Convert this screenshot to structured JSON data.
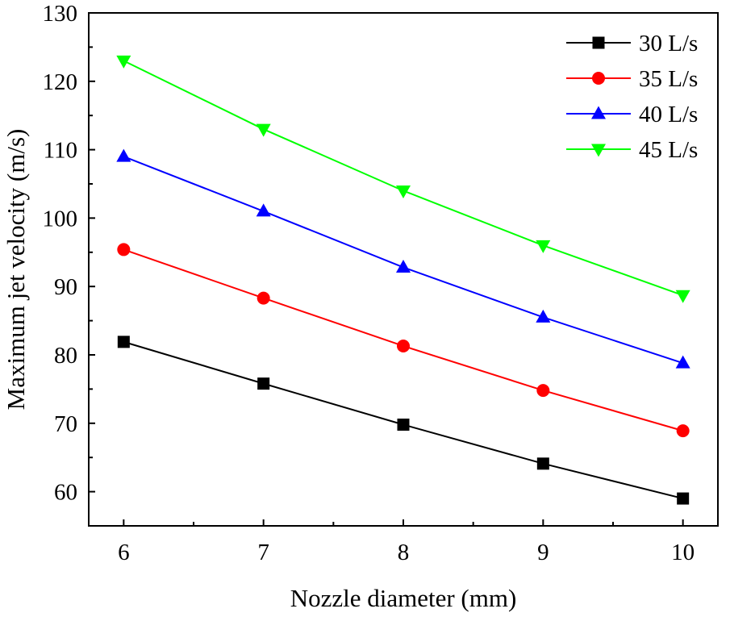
{
  "chart_data": {
    "type": "line",
    "title": "",
    "xlabel": "Nozzle diameter (mm)",
    "ylabel": "Maximum jet velocity (m/s)",
    "x": [
      6,
      7,
      8,
      9,
      10
    ],
    "xticks": [
      "6",
      "7",
      "8",
      "9",
      "10"
    ],
    "xlim": [
      5.75,
      10.25
    ],
    "ylim": [
      55,
      130
    ],
    "yticks": [
      "60",
      "70",
      "80",
      "90",
      "100",
      "110",
      "120",
      "130"
    ],
    "grid": false,
    "legend_position": "top-right",
    "series": [
      {
        "name": "30 L/s",
        "color": "#000000",
        "marker": "square",
        "values": [
          81.9,
          75.8,
          69.8,
          64.1,
          59.0
        ]
      },
      {
        "name": "35 L/s",
        "color": "#ff0000",
        "marker": "circle",
        "values": [
          95.4,
          88.3,
          81.3,
          74.8,
          68.9
        ]
      },
      {
        "name": "40 L/s",
        "color": "#0000ff",
        "marker": "triangle-up",
        "values": [
          109.0,
          101.0,
          92.8,
          85.5,
          78.8
        ]
      },
      {
        "name": "45 L/s",
        "color": "#00ff00",
        "marker": "triangle-down",
        "values": [
          123.0,
          113.0,
          104.0,
          96.0,
          88.7
        ]
      }
    ]
  }
}
